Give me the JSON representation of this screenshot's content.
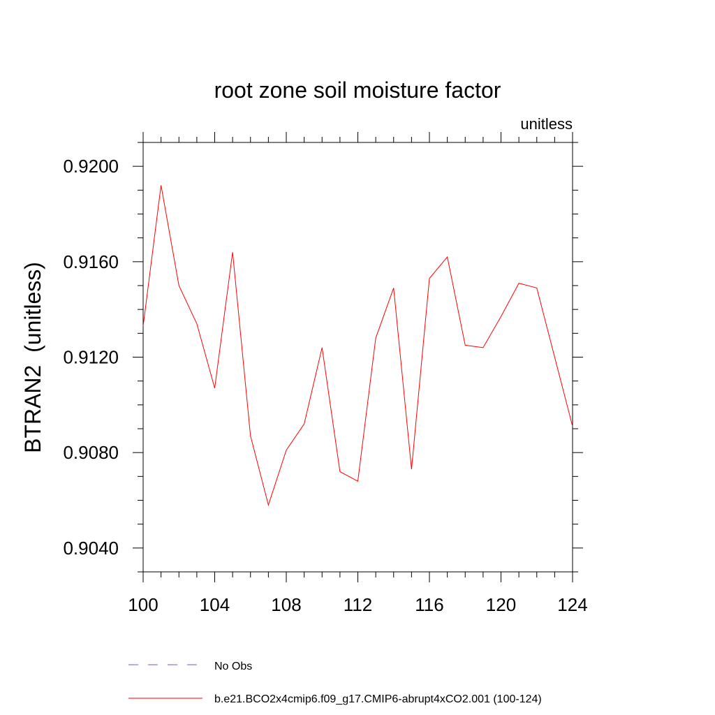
{
  "chart_data": {
    "type": "line",
    "title": "root zone soil moisture factor",
    "units_label": "unitless",
    "xlabel": "",
    "ylabel": "BTRAN2  (unitless)",
    "xlim": [
      100,
      124
    ],
    "ylim": [
      0.903,
      0.921
    ],
    "x_ticks": [
      100,
      104,
      108,
      112,
      116,
      120,
      124
    ],
    "x_tick_labels": [
      "100",
      "104",
      "108",
      "112",
      "116",
      "120",
      "124"
    ],
    "y_ticks": [
      0.904,
      0.908,
      0.912,
      0.916,
      0.92
    ],
    "y_tick_labels": [
      "0.9040",
      "0.9080",
      "0.9120",
      "0.9160",
      "0.9200"
    ],
    "series": [
      {
        "name": "b.e21.BCO2x4cmip6.f09_g17.CMIP6-abrupt4xCO2.001 (100-124)",
        "color": "#ff0000",
        "x": [
          100,
          101,
          102,
          103,
          104,
          105,
          106,
          107,
          108,
          109,
          110,
          111,
          112,
          113,
          114,
          115,
          116,
          117,
          118,
          119,
          120,
          121,
          122,
          123,
          124
        ],
        "values": [
          0.9133,
          0.9192,
          0.915,
          0.9134,
          0.9107,
          0.9164,
          0.9087,
          0.9058,
          0.9081,
          0.9092,
          0.9124,
          0.9072,
          0.9068,
          0.9128,
          0.9149,
          0.9073,
          0.9153,
          0.9162,
          0.9125,
          0.9124,
          0.9137,
          0.9151,
          0.9149,
          0.912,
          0.9091
        ]
      }
    ],
    "legend": [
      {
        "label": "No Obs",
        "style": "dashed",
        "color": "#6a5acd"
      },
      {
        "label": "b.e21.BCO2x4cmip6.f09_g17.CMIP6-abrupt4xCO2.001 (100-124)",
        "style": "solid",
        "color": "#ff0000"
      }
    ],
    "legend_position": "bottom-left",
    "grid": false
  }
}
